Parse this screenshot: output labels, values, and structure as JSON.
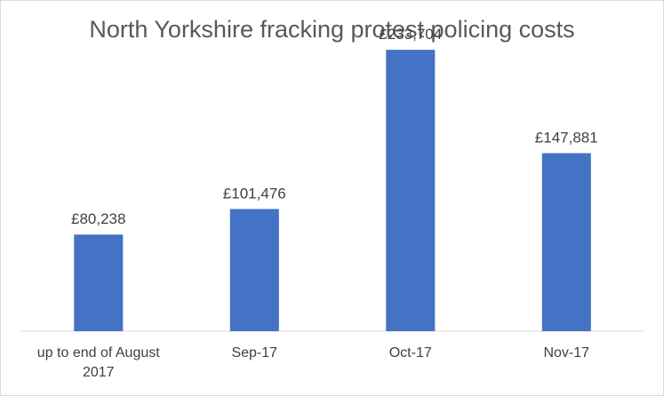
{
  "chart_data": {
    "type": "bar",
    "title": "North Yorkshire fracking protest policing costs",
    "categories": [
      [
        "up to end of August",
        "2017"
      ],
      [
        "Sep-17"
      ],
      [
        "Oct-17"
      ],
      [
        "Nov-17"
      ]
    ],
    "values": [
      80238,
      101476,
      233704,
      147881
    ],
    "data_labels": [
      "£80,238",
      "£101,476",
      "£233,704",
      "£147,881"
    ],
    "ylim": [
      0,
      250000
    ],
    "grid": false,
    "legend": "none",
    "bar_color": "#4472c4",
    "axis_color": "#d9d9d9"
  }
}
